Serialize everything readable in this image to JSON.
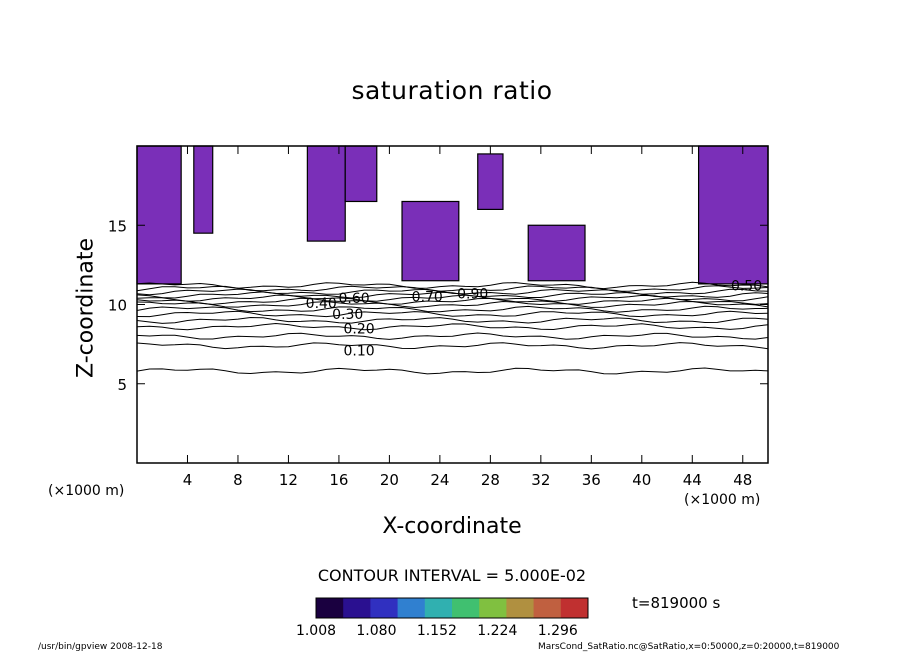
{
  "chart_data": {
    "type": "heatmap",
    "title": "saturation ratio",
    "xlabel": "X-coordinate",
    "ylabel": "Z-coordinate",
    "x_unit_left": "(×1000 m)",
    "x_unit_right": "(×1000 m)",
    "xlim": [
      0,
      50
    ],
    "ylim": [
      0,
      20
    ],
    "x_ticks": [
      4,
      8,
      12,
      16,
      20,
      24,
      28,
      32,
      36,
      40,
      44,
      48
    ],
    "y_ticks": [
      5,
      10,
      15
    ],
    "contour_interval_label": "CONTOUR INTERVAL = 5.000E-02",
    "contour_labels": [
      {
        "text": "0.10",
        "x": 17.6,
        "z": 7.1
      },
      {
        "text": "0.20",
        "x": 17.6,
        "z": 8.5
      },
      {
        "text": "0.30",
        "x": 16.7,
        "z": 9.4
      },
      {
        "text": "0.40",
        "x": 14.6,
        "z": 10.1
      },
      {
        "text": "0.60",
        "x": 17.2,
        "z": 10.4
      },
      {
        "text": "0.70",
        "x": 23.0,
        "z": 10.5
      },
      {
        "text": "0.90",
        "x": 26.6,
        "z": 10.7
      },
      {
        "text": "0.50",
        "x": 48.3,
        "z": 11.2
      }
    ],
    "contour_levels_z": [
      {
        "level": 0.05,
        "z": 5.8
      },
      {
        "level": 0.1,
        "z": 7.4
      },
      {
        "level": 0.15,
        "z": 8.0
      },
      {
        "level": 0.2,
        "z": 8.6
      },
      {
        "level": 0.25,
        "z": 9.0
      },
      {
        "level": 0.3,
        "z": 9.4
      },
      {
        "level": 0.35,
        "z": 9.7
      },
      {
        "level": 0.4,
        "z": 10.0
      },
      {
        "level": 0.45,
        "z": 10.2
      },
      {
        "level": 0.5,
        "z": 10.4
      },
      {
        "level": 0.55,
        "z": 10.6
      },
      {
        "level": 0.6,
        "z": 10.8
      },
      {
        "level": 0.7,
        "z": 11.0
      },
      {
        "level": 0.9,
        "z": 11.2
      }
    ],
    "supersaturated_regions": [
      {
        "x0": 0,
        "x1": 3.5,
        "z0": 11.3,
        "z1": 20
      },
      {
        "x0": 4.5,
        "x1": 6.0,
        "z0": 14.5,
        "z1": 20
      },
      {
        "x0": 13.5,
        "x1": 16.5,
        "z0": 14.0,
        "z1": 20
      },
      {
        "x0": 16.5,
        "x1": 19.0,
        "z0": 16.5,
        "z1": 20
      },
      {
        "x0": 21.0,
        "x1": 25.5,
        "z0": 11.5,
        "z1": 16.5
      },
      {
        "x0": 27.0,
        "x1": 29.0,
        "z0": 16.0,
        "z1": 19.5
      },
      {
        "x0": 31.0,
        "x1": 35.5,
        "z0": 11.5,
        "z1": 15.0
      },
      {
        "x0": 44.5,
        "x1": 50.0,
        "z0": 11.3,
        "z1": 20
      }
    ],
    "colorbar": {
      "tick_labels": [
        "1.008",
        "1.080",
        "1.152",
        "1.224",
        "1.296"
      ],
      "min": 1.008,
      "max": 1.332,
      "colors": [
        "#1a0040",
        "#2a1090",
        "#3030c0",
        "#3080d0",
        "#30b0b0",
        "#40c070",
        "#80c040",
        "#b09040",
        "#c06040",
        "#c03030"
      ]
    },
    "region_color": "#7a2fb8",
    "time_label": "t=819000 s"
  },
  "footer": {
    "left": "/usr/bin/gpview   2008-12-18",
    "right": "MarsCond_SatRatio.nc@SatRatio,x=0:50000,z=0:20000,t=819000"
  }
}
